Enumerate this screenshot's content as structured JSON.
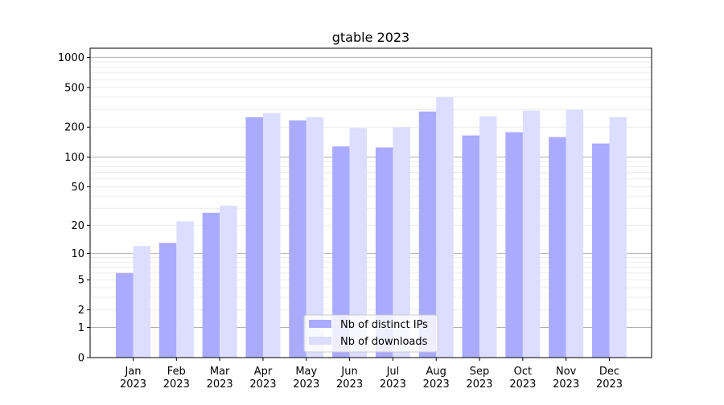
{
  "chart_data": {
    "type": "bar",
    "title": "gtable 2023",
    "xlabel": "",
    "ylabel": "",
    "yscale": "log(1+x)",
    "ylim": [
      0,
      1235
    ],
    "yticks": [
      0,
      1,
      2,
      5,
      10,
      20,
      50,
      100,
      200,
      500,
      1000
    ],
    "grid": true,
    "legend_position": "bottom-center",
    "categories": [
      "Jan\n2023",
      "Feb\n2023",
      "Mar\n2023",
      "Apr\n2023",
      "May\n2023",
      "Jun\n2023",
      "Jul\n2023",
      "Aug\n2023",
      "Sep\n2023",
      "Oct\n2023",
      "Nov\n2023",
      "Dec\n2023"
    ],
    "series": [
      {
        "name": "Nb of distinct IPs",
        "color": "#aaaaff",
        "values": [
          6,
          13,
          27,
          252,
          234,
          128,
          125,
          287,
          165,
          178,
          159,
          137
        ]
      },
      {
        "name": "Nb of downloads",
        "color": "#ddddff",
        "values": [
          12,
          22,
          32,
          277,
          252,
          196,
          199,
          401,
          257,
          293,
          298,
          252
        ]
      }
    ]
  }
}
